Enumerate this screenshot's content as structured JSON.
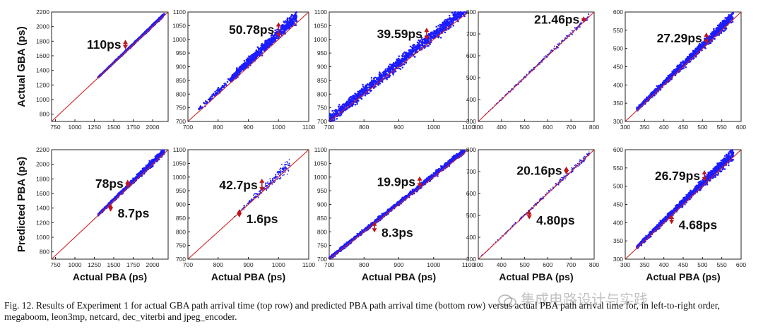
{
  "figure": {
    "caption": "Fig. 12.  Results of Experiment 1 for actual GBA path arrival time (top row) and predicted PBA path arrival time (bottom row) versus actual PBA path arrival time for, in left-to-right order, megaboom, leon3mp, netcard, dec_viterbi and jpeg_encoder.",
    "watermark": "集成电路设计与实践",
    "row_labels": [
      "Actual GBA (ps)",
      "Predicted PBA (ps)"
    ],
    "colors": {
      "points": "#1c1cff",
      "diagonal": "#d22020",
      "arrow": "#c0161b"
    }
  },
  "chart_data": [
    {
      "type": "scatter",
      "row": 0,
      "col": 0,
      "design": "megaboom",
      "xlabel": "",
      "ylabel": "Actual GBA (ps)",
      "xlim": [
        700,
        2200
      ],
      "ylim": [
        700,
        2200
      ],
      "xticks": [
        750,
        1000,
        1250,
        1500,
        1750,
        2000
      ],
      "yticks": [
        800,
        1000,
        1200,
        1400,
        1600,
        1800,
        2000,
        2200
      ],
      "band": {
        "x_start": 1300,
        "x_end": 2150,
        "offset": 15,
        "width_start": 10,
        "width_end": 30
      },
      "annotations": [
        {
          "text": "110ps",
          "x": 1650,
          "y0": 1700,
          "y1": 1810,
          "side": "upper"
        }
      ]
    },
    {
      "type": "scatter",
      "row": 0,
      "col": 1,
      "design": "leon3mp",
      "xlabel": "",
      "ylabel": "",
      "xlim": [
        700,
        1100
      ],
      "ylim": [
        700,
        1100
      ],
      "xticks": [
        700,
        800,
        900,
        1000,
        1100
      ],
      "yticks": [
        700,
        750,
        800,
        850,
        900,
        950,
        1000,
        1050,
        1100
      ],
      "band": {
        "x_start": 735,
        "x_end": 1060,
        "offset": 25,
        "width_start": 12,
        "width_end": 40,
        "sparse_until": 840
      },
      "annotations": [
        {
          "text": "50.78ps",
          "x": 1000,
          "y0": 1010,
          "y1": 1060,
          "side": "upper"
        }
      ]
    },
    {
      "type": "scatter",
      "row": 0,
      "col": 2,
      "design": "netcard",
      "xlabel": "",
      "ylabel": "",
      "xlim": [
        700,
        1100
      ],
      "ylim": [
        700,
        1100
      ],
      "xticks": [
        700,
        800,
        900,
        1000,
        1100
      ],
      "yticks": [
        700,
        750,
        800,
        850,
        900,
        950,
        1000,
        1050,
        1100
      ],
      "band": {
        "x_start": 700,
        "x_end": 1095,
        "offset": 20,
        "width_start": 30,
        "width_end": 40
      },
      "annotations": [
        {
          "text": "39.59ps",
          "x": 980,
          "y0": 1000,
          "y1": 1040,
          "side": "upper"
        }
      ]
    },
    {
      "type": "scatter",
      "row": 0,
      "col": 3,
      "design": "dec_viterbi",
      "xlabel": "",
      "ylabel": "",
      "xlim": [
        300,
        800
      ],
      "ylim": [
        300,
        800
      ],
      "xticks": [
        300,
        400,
        500,
        600,
        700,
        800
      ],
      "yticks": [
        300,
        400,
        500,
        600,
        700,
        800
      ],
      "band": {
        "x_start": 310,
        "x_end": 780,
        "offset": 4,
        "width_start": 4,
        "width_end": 20,
        "sparse": true
      },
      "annotations": [
        {
          "text": "21.46ps",
          "x": 755,
          "y0": 755,
          "y1": 777,
          "side": "upper"
        }
      ]
    },
    {
      "type": "scatter",
      "row": 0,
      "col": 4,
      "design": "jpeg_encoder",
      "xlabel": "",
      "ylabel": "",
      "xlim": [
        300,
        600
      ],
      "ylim": [
        300,
        600
      ],
      "xticks": [
        300,
        350,
        400,
        450,
        500,
        550,
        600
      ],
      "yticks": [
        300,
        350,
        400,
        450,
        500,
        550,
        600
      ],
      "band": {
        "x_start": 330,
        "x_end": 580,
        "offset": 10,
        "width_start": 8,
        "width_end": 27
      },
      "annotations": [
        {
          "text": "27.29ps",
          "x": 510,
          "y0": 515,
          "y1": 542,
          "side": "upper"
        }
      ]
    },
    {
      "type": "scatter",
      "row": 1,
      "col": 0,
      "design": "megaboom",
      "xlabel": "Actual PBA (ps)",
      "ylabel": "Predicted PBA (ps)",
      "xlim": [
        700,
        2200
      ],
      "ylim": [
        700,
        2200
      ],
      "xticks": [
        750,
        1000,
        1250,
        1500,
        1750,
        2000
      ],
      "yticks": [
        800,
        1000,
        1200,
        1400,
        1600,
        1800,
        2000,
        2200
      ],
      "band": {
        "x_start": 1300,
        "x_end": 2150,
        "offset": 30,
        "width_start": 20,
        "width_end": 78
      },
      "annotations": [
        {
          "text": "78ps",
          "x": 1680,
          "y0": 1690,
          "y1": 1780,
          "side": "upper"
        },
        {
          "text": "8.7ps",
          "x": 1460,
          "y0": 1360,
          "y1": 1450,
          "side": "lower"
        }
      ]
    },
    {
      "type": "scatter",
      "row": 1,
      "col": 1,
      "design": "leon3mp",
      "xlabel": "Actual PBA (ps)",
      "ylabel": "",
      "xlim": [
        700,
        1100
      ],
      "ylim": [
        700,
        1100
      ],
      "xticks": [
        700,
        800,
        900,
        1000,
        1100
      ],
      "yticks": [
        700,
        750,
        800,
        850,
        900,
        950,
        1000,
        1050,
        1100
      ],
      "band": {
        "x_start": 850,
        "x_end": 1040,
        "offset": 10,
        "width_start": 5,
        "width_end": 40,
        "sparse": true
      },
      "annotations": [
        {
          "text": "42.7ps",
          "x": 945,
          "y0": 950,
          "y1": 992,
          "side": "upper"
        },
        {
          "text": "1.6ps",
          "x": 870,
          "y0": 855,
          "y1": 880,
          "side": "lower"
        }
      ]
    },
    {
      "type": "scatter",
      "row": 1,
      "col": 2,
      "design": "netcard",
      "xlabel": "Actual PBA (ps)",
      "ylabel": "",
      "xlim": [
        700,
        1100
      ],
      "ylim": [
        700,
        1100
      ],
      "xticks": [
        700,
        800,
        900,
        1000,
        1100
      ],
      "yticks": [
        700,
        750,
        800,
        850,
        900,
        950,
        1000,
        1050,
        1100
      ],
      "band": {
        "x_start": 700,
        "x_end": 1090,
        "offset": 8,
        "width_start": 10,
        "width_end": 18
      },
      "annotations": [
        {
          "text": "19.9ps",
          "x": 960,
          "y0": 965,
          "y1": 1000,
          "side": "upper"
        },
        {
          "text": "8.3ps",
          "x": 830,
          "y0": 800,
          "y1": 835,
          "side": "lower"
        }
      ]
    },
    {
      "type": "scatter",
      "row": 1,
      "col": 3,
      "design": "dec_viterbi",
      "xlabel": "Actual PBA (ps)",
      "ylabel": "",
      "xlim": [
        300,
        800
      ],
      "ylim": [
        300,
        800
      ],
      "xticks": [
        300,
        400,
        500,
        600,
        700,
        800
      ],
      "yticks": [
        300,
        400,
        500,
        600,
        700,
        800
      ],
      "band": {
        "x_start": 310,
        "x_end": 780,
        "offset": 3,
        "width_start": 4,
        "width_end": 20,
        "sparse": true
      },
      "annotations": [
        {
          "text": "20.16ps",
          "x": 680,
          "y0": 690,
          "y1": 720,
          "side": "upper"
        },
        {
          "text": "4.80ps",
          "x": 520,
          "y0": 485,
          "y1": 520,
          "side": "lower"
        }
      ]
    },
    {
      "type": "scatter",
      "row": 1,
      "col": 4,
      "design": "jpeg_encoder",
      "xlabel": "Actual PBA (ps)",
      "ylabel": "",
      "xlim": [
        300,
        600
      ],
      "ylim": [
        300,
        600
      ],
      "xticks": [
        300,
        350,
        400,
        450,
        500,
        550,
        600
      ],
      "yticks": [
        300,
        350,
        400,
        450,
        500,
        550,
        600
      ],
      "band": {
        "x_start": 330,
        "x_end": 580,
        "offset": 10,
        "width_start": 8,
        "width_end": 27
      },
      "annotations": [
        {
          "text": "26.79ps",
          "x": 505,
          "y0": 515,
          "y1": 542,
          "side": "upper"
        },
        {
          "text": "4.68ps",
          "x": 420,
          "y0": 398,
          "y1": 420,
          "side": "lower"
        }
      ]
    }
  ]
}
